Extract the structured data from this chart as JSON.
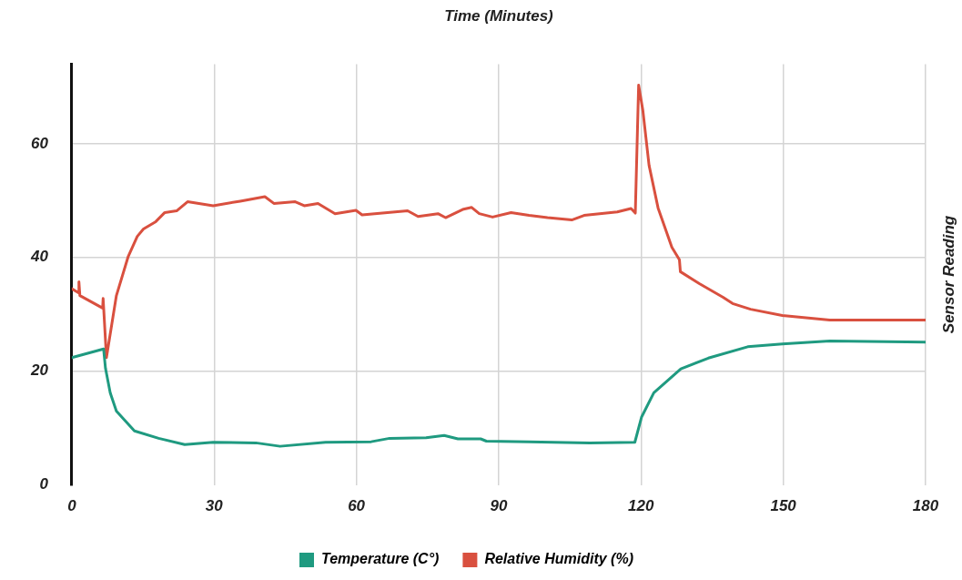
{
  "chart_data": {
    "type": "line",
    "xlabel": "Time (Minutes)",
    "ylabel": "Sensor Reading",
    "xlim": [
      0,
      180
    ],
    "xticks": [
      0,
      30,
      60,
      90,
      120,
      150,
      180
    ],
    "ylim": [
      0,
      74
    ],
    "yticks": [
      0,
      20,
      40,
      60
    ],
    "grid": true,
    "legend": "bottom",
    "marker": "none",
    "line_style": "solid",
    "series": [
      {
        "name": "Temperature (C°)",
        "color": "#1f9a80",
        "x": [
          0,
          6.7,
          7.1,
          8.1,
          9.4,
          13.2,
          18.3,
          23.8,
          29.8,
          38.8,
          43.9,
          53.5,
          63.1,
          67,
          74.7,
          78.5,
          81.4,
          86.2,
          87.4,
          96.4,
          109.2,
          118.7,
          120.1,
          122.7,
          128.4,
          134.2,
          142.5,
          149.8,
          159.8,
          180
        ],
        "values": [
          22.4,
          23.9,
          20.5,
          16.2,
          13,
          9.5,
          8.2,
          7.1,
          7.5,
          7.4,
          6.8,
          7.5,
          7.6,
          8.2,
          8.3,
          8.7,
          8.1,
          8.1,
          7.7,
          7.6,
          7.4,
          7.5,
          11.9,
          16.2,
          20.4,
          22.3,
          24.3,
          24.8,
          25.3,
          25.1
        ]
      },
      {
        "name": "Relative Humidity (%)",
        "color": "#d9503f",
        "x": [
          0,
          1.4,
          1.5,
          1.7,
          6.5,
          6.6,
          7.3,
          9.4,
          11.9,
          13.8,
          15.1,
          17.7,
          19.6,
          22.1,
          24.4,
          29.8,
          35.5,
          40.7,
          42.6,
          47.1,
          49,
          51.9,
          55.5,
          59.9,
          61.2,
          70.8,
          73,
          77.2,
          78.8,
          82.6,
          84.3,
          85.9,
          88.7,
          92.6,
          96.4,
          100.3,
          105.4,
          108,
          115,
          117.9,
          118.8,
          119.5,
          120.4,
          121.7,
          123.6,
          126.5,
          128.1,
          128.3,
          132.3,
          137.3,
          139.3,
          143.1,
          149.8,
          159.8,
          169.4,
          180
        ],
        "values": [
          34.5,
          33.8,
          35.7,
          33.3,
          31.1,
          32.8,
          22.4,
          33.3,
          40.2,
          43.7,
          45,
          46.3,
          47.9,
          48.2,
          49.8,
          49.1,
          49.9,
          50.7,
          49.5,
          49.8,
          49.1,
          49.5,
          47.7,
          48.3,
          47.5,
          48.2,
          47.2,
          47.7,
          47,
          48.5,
          48.8,
          47.7,
          47.1,
          47.9,
          47.4,
          47,
          46.6,
          47.4,
          48,
          48.6,
          47.8,
          70.3,
          65.8,
          56.2,
          48.7,
          41.8,
          39.6,
          37.5,
          35.4,
          33,
          31.9,
          30.9,
          29.8,
          29,
          29,
          29
        ]
      }
    ]
  }
}
